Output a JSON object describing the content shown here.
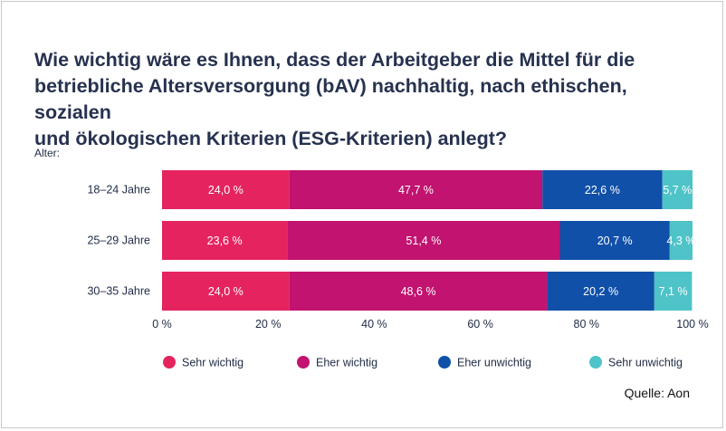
{
  "title_lines": [
    "Wie wichtig wäre es Ihnen, dass der Arbeitgeber die Mittel für die",
    "betriebliche Altersversorgung (bAV) nachhaltig, nach ethischen, sozialen",
    "und ökologischen Kriterien (ESG-Kriterien) anlegt?"
  ],
  "source": "Quelle: Aon",
  "chart_data": {
    "type": "bar",
    "orientation": "horizontal",
    "stacked": true,
    "group_label": "Alter:",
    "categories": [
      "18–24 Jahre",
      "25–29 Jahre",
      "30–35 Jahre"
    ],
    "series": [
      {
        "name": "Sehr wichtig",
        "color": "#e5245f",
        "values": [
          24.0,
          23.6,
          24.0
        ],
        "labels": [
          "24,0 %",
          "23,6 %",
          "24,0 %"
        ]
      },
      {
        "name": "Eher wichtig",
        "color": "#c1136f",
        "values": [
          47.7,
          51.4,
          48.6
        ],
        "labels": [
          "47,7 %",
          "51,4 %",
          "48,6 %"
        ]
      },
      {
        "name": "Eher unwichtig",
        "color": "#1050a8",
        "values": [
          22.6,
          20.7,
          20.2
        ],
        "labels": [
          "22,6 %",
          "20,7 %",
          "20,2 %"
        ]
      },
      {
        "name": "Sehr unwichtig",
        "color": "#4ec3c8",
        "values": [
          5.7,
          4.3,
          7.1
        ],
        "labels": [
          "5,7 %",
          "4,3 %",
          "7,1 %"
        ]
      }
    ],
    "xlim": [
      0,
      100
    ],
    "xticks": [
      0,
      20,
      40,
      60,
      80,
      100
    ],
    "xtick_labels": [
      "0 %",
      "20 %",
      "40 %",
      "60 %",
      "80 %",
      "100 %"
    ],
    "grid": false,
    "legend_position": "bottom"
  }
}
